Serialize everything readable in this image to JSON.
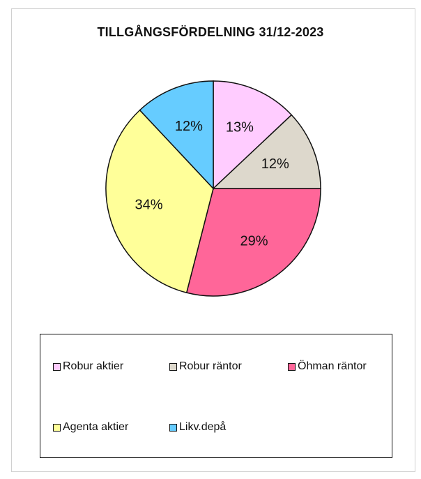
{
  "chart_data": {
    "type": "pie",
    "title": "TILLGÅNGSFÖRDELNING 31/12-2023",
    "slices": [
      {
        "name": "Robur aktier",
        "value": 13,
        "label": "13%",
        "color": "#ffccff"
      },
      {
        "name": "Robur räntor",
        "value": 12,
        "label": "12%",
        "color": "#ddd8cc"
      },
      {
        "name": "Öhman räntor",
        "value": 29,
        "label": "29%",
        "color": "#ff6699"
      },
      {
        "name": "Agenta aktier",
        "value": 34,
        "label": "34%",
        "color": "#ffff99"
      },
      {
        "name": "Likv.depå",
        "value": 12,
        "label": "12%",
        "color": "#66ccff"
      }
    ],
    "start_angle": "12 o'clock",
    "direction": "clockwise",
    "legend_position": "bottom"
  }
}
